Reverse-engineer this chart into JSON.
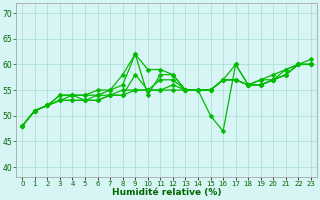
{
  "x": [
    0,
    1,
    2,
    3,
    4,
    5,
    6,
    7,
    8,
    9,
    10,
    11,
    12,
    13,
    14,
    15,
    16,
    17,
    18,
    19,
    20,
    21,
    22,
    23
  ],
  "series": [
    [
      48,
      51,
      52,
      53,
      53,
      53,
      53,
      54,
      54,
      58,
      55,
      57,
      57,
      55,
      55,
      55,
      57,
      57,
      56,
      56,
      57,
      58,
      60,
      60
    ],
    [
      48,
      51,
      52,
      53,
      53,
      53,
      53,
      54,
      54,
      55,
      55,
      55,
      55,
      55,
      55,
      55,
      57,
      57,
      56,
      56,
      57,
      58,
      60,
      60
    ],
    [
      48,
      51,
      52,
      53,
      54,
      53,
      54,
      54,
      55,
      55,
      55,
      55,
      56,
      55,
      55,
      55,
      57,
      57,
      56,
      56,
      57,
      58,
      60,
      61
    ],
    [
      48,
      51,
      52,
      54,
      54,
      54,
      54,
      55,
      56,
      62,
      59,
      59,
      58,
      55,
      55,
      50,
      47,
      60,
      56,
      57,
      58,
      59,
      60,
      60
    ],
    [
      48,
      51,
      52,
      54,
      54,
      54,
      55,
      55,
      58,
      62,
      54,
      58,
      58,
      55,
      55,
      55,
      57,
      60,
      56,
      57,
      57,
      59,
      60,
      60
    ]
  ],
  "line_color": "#00BB00",
  "marker": "D",
  "marker_size": 2.5,
  "bg_color": "#D8F5F5",
  "grid_color": "#AADDCC",
  "xlabel": "Humidité relative (%)",
  "ylabel_ticks": [
    40,
    45,
    50,
    55,
    60,
    65,
    70
  ],
  "ylim": [
    38,
    72
  ],
  "xlim": [
    -0.5,
    23.5
  ]
}
